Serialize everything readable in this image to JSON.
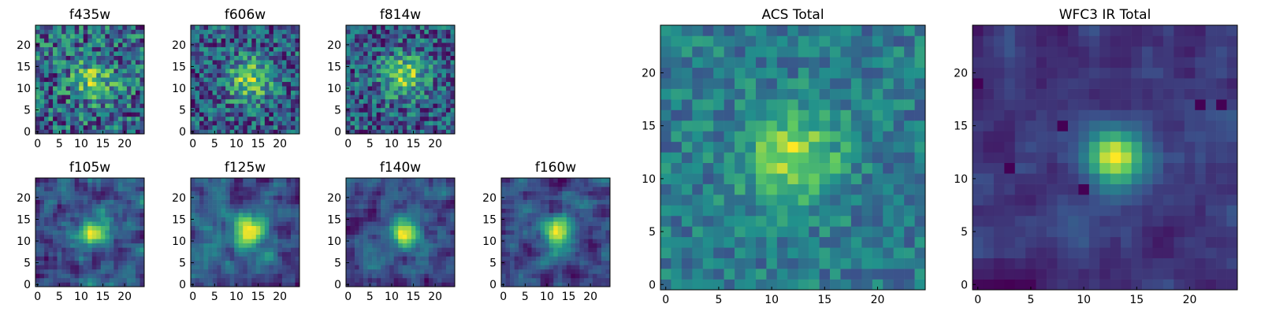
{
  "figure_title": "",
  "colormap": [
    "#440154",
    "#3b528b",
    "#21918c",
    "#5ec962",
    "#fde725"
  ],
  "chart_data": [
    {
      "type": "heatmap",
      "title": "f435w",
      "xlim": [
        0,
        24
      ],
      "ylim": [
        0,
        24
      ],
      "grid_size": 25,
      "xticks": [
        0,
        5,
        10,
        15,
        20
      ],
      "yticks": [
        0,
        5,
        10,
        15,
        20
      ],
      "center": [
        13,
        12
      ],
      "peak": 0.6,
      "spread": 3.5,
      "noise": 0.95,
      "seed": 11,
      "smooth": 0,
      "lows": []
    },
    {
      "type": "heatmap",
      "title": "f606w",
      "xlim": [
        0,
        24
      ],
      "ylim": [
        0,
        24
      ],
      "grid_size": 25,
      "xticks": [
        0,
        5,
        10,
        15,
        20
      ],
      "yticks": [
        0,
        5,
        10,
        15,
        20
      ],
      "center": [
        13,
        12
      ],
      "peak": 0.8,
      "spread": 3.5,
      "noise": 0.9,
      "seed": 23,
      "smooth": 0,
      "lows": []
    },
    {
      "type": "heatmap",
      "title": "f814w",
      "xlim": [
        0,
        24
      ],
      "ylim": [
        0,
        24
      ],
      "grid_size": 25,
      "xticks": [
        0,
        5,
        10,
        15,
        20
      ],
      "yticks": [
        0,
        5,
        10,
        15,
        20
      ],
      "center": [
        13,
        13
      ],
      "peak": 0.8,
      "spread": 3.5,
      "noise": 0.9,
      "seed": 37,
      "smooth": 0,
      "lows": []
    },
    {
      "type": "heatmap",
      "title": "f105w",
      "xlim": [
        0,
        24
      ],
      "ylim": [
        0,
        24
      ],
      "grid_size": 25,
      "xticks": [
        0,
        5,
        10,
        15,
        20
      ],
      "yticks": [
        0,
        5,
        10,
        15,
        20
      ],
      "center": [
        13,
        12
      ],
      "peak": 1.1,
      "spread": 2.5,
      "noise": 0.9,
      "seed": 41,
      "smooth": 1,
      "lows": []
    },
    {
      "type": "heatmap",
      "title": "f125w",
      "xlim": [
        0,
        24
      ],
      "ylim": [
        0,
        24
      ],
      "grid_size": 25,
      "xticks": [
        0,
        5,
        10,
        15,
        20
      ],
      "yticks": [
        0,
        5,
        10,
        15,
        20
      ],
      "center": [
        13,
        12
      ],
      "peak": 1.3,
      "spread": 2.5,
      "noise": 0.9,
      "seed": 53,
      "smooth": 1,
      "lows": []
    },
    {
      "type": "heatmap",
      "title": "f140w",
      "xlim": [
        0,
        24
      ],
      "ylim": [
        0,
        24
      ],
      "grid_size": 25,
      "xticks": [
        0,
        5,
        10,
        15,
        20
      ],
      "yticks": [
        0,
        5,
        10,
        15,
        20
      ],
      "center": [
        13,
        12
      ],
      "peak": 1.3,
      "spread": 2.5,
      "noise": 0.9,
      "seed": 67,
      "smooth": 1,
      "lows": []
    },
    {
      "type": "heatmap",
      "title": "f160w",
      "xlim": [
        0,
        24
      ],
      "ylim": [
        0,
        24
      ],
      "grid_size": 25,
      "xticks": [
        0,
        5,
        10,
        15,
        20
      ],
      "yticks": [
        0,
        5,
        10,
        15,
        20
      ],
      "center": [
        13,
        12
      ],
      "peak": 1.4,
      "spread": 2.5,
      "noise": 0.9,
      "seed": 71,
      "smooth": 1,
      "lows": []
    },
    {
      "type": "heatmap",
      "title": "ACS Total",
      "xlim": [
        0,
        24
      ],
      "ylim": [
        0,
        24
      ],
      "grid_size": 25,
      "xticks": [
        0,
        5,
        10,
        15,
        20
      ],
      "yticks": [
        0,
        5,
        10,
        15,
        20
      ],
      "center": [
        12,
        12
      ],
      "peak": 1.0,
      "spread": 3.0,
      "noise": 0.7,
      "seed": 83,
      "smooth": 0,
      "bias": 0.5,
      "lows": []
    },
    {
      "type": "heatmap",
      "title": "WFC3 IR Total",
      "xlim": [
        0,
        24
      ],
      "ylim": [
        0,
        24
      ],
      "grid_size": 25,
      "xticks": [
        0,
        5,
        10,
        15,
        20
      ],
      "yticks": [
        0,
        5,
        10,
        15,
        20
      ],
      "center": [
        13,
        12
      ],
      "peak": 1.6,
      "spread": 1.8,
      "noise": 0.55,
      "seed": 97,
      "smooth": 1,
      "lows": [
        [
          3,
          11
        ],
        [
          21,
          17
        ],
        [
          23,
          17
        ],
        [
          8,
          15
        ],
        [
          10,
          9
        ],
        [
          0,
          19
        ]
      ]
    }
  ]
}
